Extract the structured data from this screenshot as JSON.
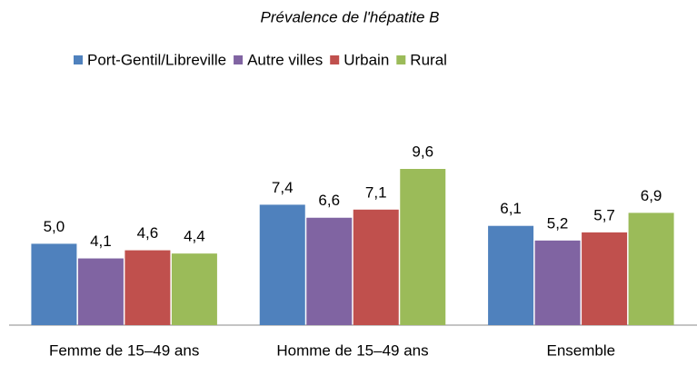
{
  "chart_data": {
    "type": "bar",
    "title": "Prévalence de l'hépatite B",
    "categories": [
      "Femme de 15–49 ans",
      "Homme de 15–49 ans",
      "Ensemble"
    ],
    "series": [
      {
        "name": "Port-Gentil/Libreville",
        "color": "#4f81bd",
        "values": [
          5.0,
          7.4,
          6.1
        ],
        "value_labels": [
          "5,0",
          "7,4",
          "6,1"
        ]
      },
      {
        "name": "Autre villes",
        "color": "#8064a2",
        "values": [
          4.1,
          6.6,
          5.2
        ],
        "value_labels": [
          "4,1",
          "6,6",
          "5,2"
        ]
      },
      {
        "name": "Urbain",
        "color": "#c0504d",
        "values": [
          4.6,
          7.1,
          5.7
        ],
        "value_labels": [
          "4,6",
          "7,1",
          "5,7"
        ]
      },
      {
        "name": "Rural",
        "color": "#9bbb59",
        "values": [
          4.4,
          9.6,
          6.9
        ],
        "value_labels": [
          "4,4",
          "9,6",
          "6,9"
        ]
      }
    ],
    "legend": "top"
  }
}
